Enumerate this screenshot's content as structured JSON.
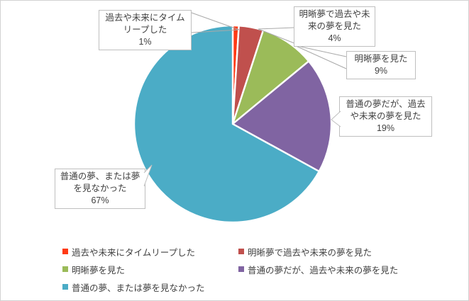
{
  "chart_data": {
    "type": "pie",
    "title": "",
    "start_angle_deg": 0,
    "direction": "clockwise",
    "total_percent": 100,
    "slices": [
      {
        "label": "過去や未来にタイムリープした",
        "value": 1,
        "pct_label": "1%",
        "color": "#ff3a15"
      },
      {
        "label": "明晰夢で過去や未来の夢を見た",
        "value": 4,
        "pct_label": "4%",
        "color": "#c0504d"
      },
      {
        "label": "明晰夢を見た",
        "value": 9,
        "pct_label": "9%",
        "color": "#9bbb59"
      },
      {
        "label": "普通の夢だが、過去や未来の夢を見た",
        "value": 19,
        "pct_label": "19%",
        "color": "#8064a2"
      },
      {
        "label": "普通の夢、または夢を見なかった",
        "value": 67,
        "pct_label": "67%",
        "color": "#4bacc6"
      }
    ],
    "data_labels": "category name and percentage shown in outside callout boxes with leader lines",
    "legend_position": "bottom, two columns"
  },
  "style": {
    "background": "#ffffff",
    "frame_border": "#d2d2d2",
    "text_color": "#404040",
    "callout_border": "#bfbfbf",
    "leader_line": "#a9a9a9",
    "slice_separator": "#ffffff"
  }
}
